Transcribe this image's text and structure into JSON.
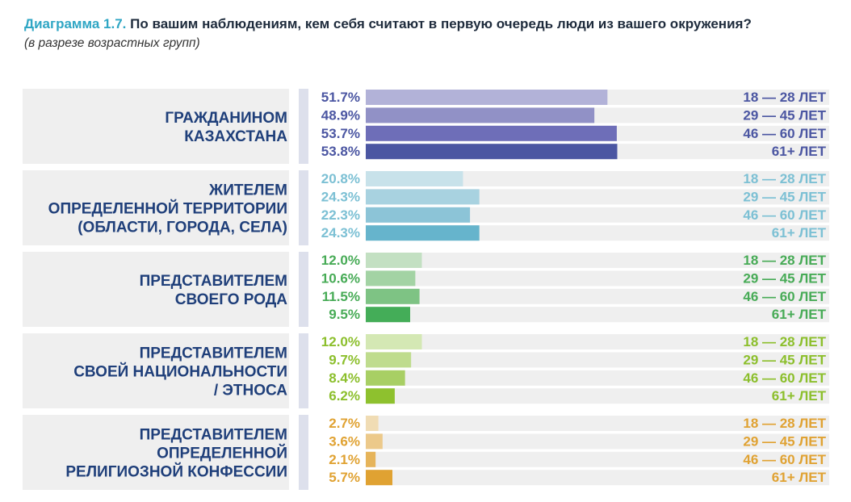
{
  "title": {
    "prefix": "Диаграмма 1.7.",
    "text": "По вашим наблюдениям, кем себя считают в первую очередь люди из вашего окружения?"
  },
  "subtitle": "(в разрезе возрастных групп)",
  "chart_data": {
    "type": "bar",
    "orientation": "horizontal",
    "series_names": [
      "18 — 28 ЛЕТ",
      "29 — 45 ЛЕТ",
      "46 — 60 ЛЕТ",
      "61+ ЛЕТ"
    ],
    "groups": [
      {
        "lines": [
          "ГРАЖДАНИНОМ",
          "КАЗАХСТАНА"
        ],
        "values": [
          51.7,
          48.9,
          53.7,
          53.8
        ],
        "value_labels": [
          "51.7%",
          "48.9%",
          "53.7%",
          "53.8%"
        ],
        "colors": [
          "#b2b2d8",
          "#9191c6",
          "#6e6eb8",
          "#4b56a2"
        ],
        "text_color": "#4b56a2"
      },
      {
        "lines": [
          "ЖИТЕЛЕМ",
          "ОПРЕДЕЛЕННОЙ ТЕРРИТОРИИ",
          "(ОБЛАСТИ, ГОРОДА, СЕЛА)"
        ],
        "values": [
          20.8,
          24.3,
          22.3,
          24.3
        ],
        "value_labels": [
          "20.8%",
          "24.3%",
          "22.3%",
          "24.3%"
        ],
        "colors": [
          "#c8e2ea",
          "#a8d2e0",
          "#8cc4d7",
          "#66b4cc"
        ],
        "text_color": "#7cc0d4"
      },
      {
        "lines": [
          "ПРЕДСТАВИТЕЛЕМ",
          "СВОЕГО РОДА"
        ],
        "values": [
          12.0,
          10.6,
          11.5,
          9.5
        ],
        "value_labels": [
          "12.0%",
          "10.6%",
          "11.5%",
          "9.5%"
        ],
        "colors": [
          "#c3e0c2",
          "#a3d3a4",
          "#7ec384",
          "#44ad58"
        ],
        "text_color": "#47ab56"
      },
      {
        "lines": [
          "ПРЕДСТАВИТЕЛЕМ",
          "СВОЕЙ НАЦИОНАЛЬНОСТИ",
          "/ ЭТНОСА"
        ],
        "values": [
          12.0,
          9.7,
          8.4,
          6.2
        ],
        "value_labels": [
          "12.0%",
          "9.7%",
          "8.4%",
          "6.2%"
        ],
        "colors": [
          "#d4e8b4",
          "#bfdc8e",
          "#a8cf64",
          "#8ec12e"
        ],
        "text_color": "#8cbf2c"
      },
      {
        "lines": [
          "ПРЕДСТАВИТЕЛЕМ",
          "ОПРЕДЕЛЕННОЙ",
          "РЕЛИГИОЗНОЙ КОНФЕССИИ"
        ],
        "values": [
          2.7,
          3.6,
          2.1,
          5.7
        ],
        "value_labels": [
          "2.7%",
          "3.6%",
          "2.1%",
          "5.7%"
        ],
        "colors": [
          "#f0dcb4",
          "#ecc98a",
          "#e6b45a",
          "#e0a232"
        ],
        "text_color": "#e0a232"
      }
    ],
    "label_text_color": "#1f3f7a",
    "track_color": "#efefef",
    "side_bar_color": "#dde0ec"
  }
}
